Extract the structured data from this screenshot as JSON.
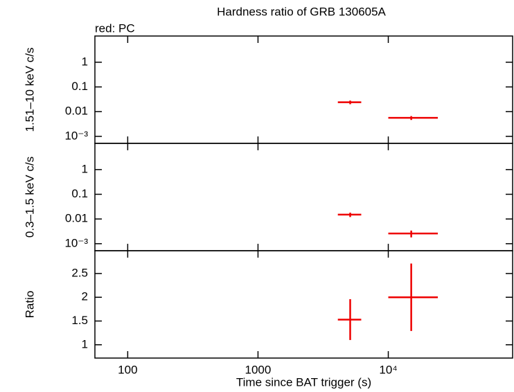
{
  "chart_data": [
    {
      "type": "errorbar",
      "title": "Hardness ratio of GRB 130605A",
      "subtitle": "red: PC",
      "ylabel": "1.51–10 keV c/s",
      "log_x": true,
      "log_y": true,
      "xlim": [
        56,
        90000
      ],
      "ylim": [
        0.00052,
        11.5
      ],
      "yticks": [
        {
          "value": 0.001,
          "label": "10⁻³"
        },
        0.01,
        0.1,
        1
      ],
      "series": [
        {
          "color": "#ee0000",
          "x": [
            5100,
            15000
          ],
          "xerr_minus": [
            1000,
            5000
          ],
          "xerr_plus": [
            1100,
            9000
          ],
          "values": [
            0.024,
            0.0056
          ],
          "yerr": [
            0.004,
            0.001
          ]
        }
      ]
    },
    {
      "type": "errorbar",
      "ylabel": "0.3–1.5 keV c/s",
      "log_x": true,
      "log_y": true,
      "xlim": [
        56,
        90000
      ],
      "ylim": [
        0.00052,
        11.5
      ],
      "yticks": [
        {
          "value": 0.001,
          "label": "10⁻³"
        },
        0.01,
        0.1,
        1
      ],
      "series": [
        {
          "color": "#ee0000",
          "x": [
            5100,
            15000
          ],
          "xerr_minus": [
            1000,
            5000
          ],
          "xerr_plus": [
            1100,
            9000
          ],
          "values": [
            0.015,
            0.0026
          ],
          "yerr": [
            0.003,
            0.0008
          ]
        }
      ]
    },
    {
      "type": "errorbar",
      "ylabel": "Ratio",
      "xlabel": "Time since BAT trigger (s)",
      "log_x": true,
      "log_y": false,
      "xlim": [
        56,
        90000
      ],
      "ylim": [
        0.72,
        2.98
      ],
      "xticks": [
        100,
        1000,
        {
          "value": 10000,
          "label": "10⁴"
        }
      ],
      "yticks": [
        1,
        1.5,
        2,
        2.5
      ],
      "series": [
        {
          "color": "#ee0000",
          "x": [
            5100,
            15000
          ],
          "xerr_minus": [
            1000,
            5000
          ],
          "xerr_plus": [
            1100,
            9000
          ],
          "values": [
            1.53,
            2.0
          ],
          "yerr": [
            0.43,
            0.71
          ]
        }
      ]
    }
  ]
}
